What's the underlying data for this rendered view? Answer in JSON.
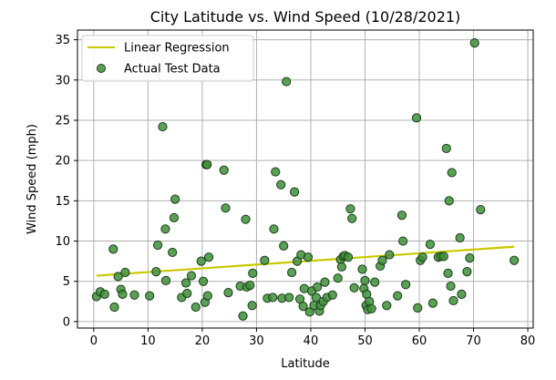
{
  "chart_data": {
    "type": "scatter",
    "title": "City Latitude vs. Wind Speed (10/28/2021)",
    "xlabel": "Latitude",
    "ylabel": "Wind Speed (mph)",
    "xlim": [
      -3,
      81
    ],
    "ylim": [
      -0.8,
      36.2
    ],
    "xticks": [
      0,
      10,
      20,
      30,
      40,
      50,
      60,
      70,
      80
    ],
    "yticks": [
      0,
      5,
      10,
      15,
      20,
      25,
      30,
      35
    ],
    "grid": true,
    "legend_position": "top-left",
    "colors": {
      "points_fill": "#3f8f3a",
      "points_edge": "#1a3d18",
      "regression": "#c8c800",
      "grid": "#b0b0b0"
    },
    "series": [
      {
        "name": "Linear Regression",
        "kind": "line",
        "points": [
          [
            0.5,
            5.7
          ],
          [
            77.5,
            9.3
          ]
        ]
      },
      {
        "name": "Actual Test Data",
        "kind": "scatter",
        "points": [
          [
            0.5,
            3.1
          ],
          [
            1.2,
            3.7
          ],
          [
            2.0,
            3.4
          ],
          [
            3.6,
            9.0
          ],
          [
            3.8,
            1.8
          ],
          [
            4.5,
            5.6
          ],
          [
            5.0,
            4.0
          ],
          [
            5.3,
            3.4
          ],
          [
            5.8,
            6.1
          ],
          [
            7.5,
            3.3
          ],
          [
            10.3,
            3.2
          ],
          [
            11.5,
            6.2
          ],
          [
            11.8,
            9.5
          ],
          [
            12.7,
            24.2
          ],
          [
            13.2,
            11.5
          ],
          [
            13.3,
            5.1
          ],
          [
            14.5,
            8.6
          ],
          [
            14.8,
            12.9
          ],
          [
            15.0,
            15.2
          ],
          [
            16.2,
            3.0
          ],
          [
            17.0,
            4.8
          ],
          [
            17.2,
            3.5
          ],
          [
            18.0,
            5.7
          ],
          [
            18.8,
            1.8
          ],
          [
            19.8,
            7.5
          ],
          [
            20.2,
            5.0
          ],
          [
            20.5,
            2.4
          ],
          [
            20.7,
            19.5
          ],
          [
            20.9,
            19.5
          ],
          [
            21.0,
            3.2
          ],
          [
            21.2,
            8.0
          ],
          [
            24.0,
            18.8
          ],
          [
            24.3,
            14.1
          ],
          [
            24.8,
            3.6
          ],
          [
            27.0,
            4.4
          ],
          [
            27.5,
            0.7
          ],
          [
            28.0,
            12.7
          ],
          [
            28.2,
            4.3
          ],
          [
            28.8,
            4.5
          ],
          [
            29.2,
            2.0
          ],
          [
            29.3,
            6.0
          ],
          [
            31.5,
            7.6
          ],
          [
            32.0,
            2.9
          ],
          [
            33.0,
            3.0
          ],
          [
            33.2,
            11.5
          ],
          [
            33.5,
            18.6
          ],
          [
            34.5,
            17.0
          ],
          [
            34.7,
            2.9
          ],
          [
            35.0,
            9.4
          ],
          [
            35.5,
            29.8
          ],
          [
            36.0,
            3.0
          ],
          [
            36.5,
            6.1
          ],
          [
            37.0,
            16.1
          ],
          [
            37.5,
            7.5
          ],
          [
            38.0,
            2.8
          ],
          [
            38.2,
            8.3
          ],
          [
            38.6,
            1.9
          ],
          [
            38.8,
            4.1
          ],
          [
            39.5,
            8.0
          ],
          [
            39.8,
            1.2
          ],
          [
            40.2,
            3.8
          ],
          [
            40.6,
            2.0
          ],
          [
            41.0,
            3.0
          ],
          [
            41.2,
            4.3
          ],
          [
            41.6,
            1.3
          ],
          [
            41.8,
            2.0
          ],
          [
            42.3,
            2.5
          ],
          [
            42.6,
            4.9
          ],
          [
            43.0,
            3.0
          ],
          [
            44.0,
            3.3
          ],
          [
            45.0,
            5.4
          ],
          [
            45.5,
            7.7
          ],
          [
            45.7,
            6.8
          ],
          [
            46.0,
            8.1
          ],
          [
            46.3,
            8.2
          ],
          [
            46.9,
            8.0
          ],
          [
            47.3,
            14.0
          ],
          [
            47.6,
            12.8
          ],
          [
            48.0,
            4.2
          ],
          [
            49.5,
            6.5
          ],
          [
            49.8,
            4.1
          ],
          [
            50.0,
            5.1
          ],
          [
            50.2,
            2.0
          ],
          [
            50.3,
            3.4
          ],
          [
            50.5,
            1.5
          ],
          [
            50.8,
            2.5
          ],
          [
            51.2,
            1.6
          ],
          [
            51.8,
            4.9
          ],
          [
            52.8,
            6.9
          ],
          [
            53.2,
            7.6
          ],
          [
            54.0,
            2.0
          ],
          [
            54.5,
            8.3
          ],
          [
            56.0,
            3.2
          ],
          [
            56.8,
            13.2
          ],
          [
            57.0,
            10.0
          ],
          [
            57.5,
            4.6
          ],
          [
            59.5,
            25.3
          ],
          [
            59.7,
            1.7
          ],
          [
            60.2,
            7.6
          ],
          [
            60.6,
            8.0
          ],
          [
            62.0,
            9.6
          ],
          [
            62.5,
            2.3
          ],
          [
            63.5,
            8.0
          ],
          [
            64.0,
            8.1
          ],
          [
            64.5,
            8.1
          ],
          [
            65.0,
            21.5
          ],
          [
            65.3,
            6.0
          ],
          [
            65.5,
            15.0
          ],
          [
            65.8,
            4.4
          ],
          [
            66.0,
            18.5
          ],
          [
            66.3,
            2.6
          ],
          [
            67.5,
            10.4
          ],
          [
            67.8,
            3.4
          ],
          [
            68.8,
            6.2
          ],
          [
            69.3,
            7.9
          ],
          [
            70.2,
            34.6
          ],
          [
            71.3,
            13.9
          ],
          [
            77.5,
            7.6
          ]
        ]
      }
    ]
  }
}
